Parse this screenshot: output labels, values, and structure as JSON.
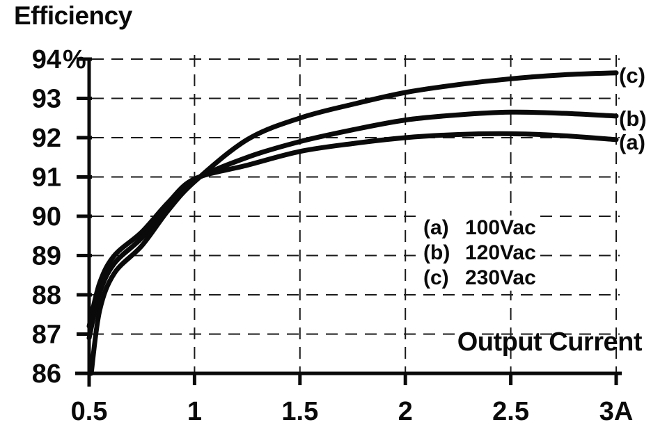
{
  "title": "Efficiency",
  "chart_data": {
    "type": "line",
    "title": "Efficiency",
    "xlabel": "Output Current",
    "ylabel": "Efficiency (%)",
    "xlim": [
      0.5,
      3.0
    ],
    "ylim": [
      86,
      94
    ],
    "grid": "dashed",
    "legend_position": "inside-middle-right",
    "x_ticks": [
      {
        "v": 0.5,
        "label": "0.5"
      },
      {
        "v": 1,
        "label": "1"
      },
      {
        "v": 1.5,
        "label": "1.5"
      },
      {
        "v": 2,
        "label": "2"
      },
      {
        "v": 2.5,
        "label": "2.5"
      },
      {
        "v": 3,
        "label": "3A"
      }
    ],
    "y_ticks": [
      {
        "v": 94,
        "label": "94",
        "suffix": "%"
      },
      {
        "v": 93,
        "label": "93",
        "suffix": ""
      },
      {
        "v": 92,
        "label": "92",
        "suffix": ""
      },
      {
        "v": 91,
        "label": "91",
        "suffix": ""
      },
      {
        "v": 90,
        "label": "90",
        "suffix": ""
      },
      {
        "v": 89,
        "label": "89",
        "suffix": ""
      },
      {
        "v": 88,
        "label": "88",
        "suffix": ""
      },
      {
        "v": 87,
        "label": "87",
        "suffix": ""
      },
      {
        "v": 86,
        "label": "86",
        "suffix": ""
      }
    ],
    "series": [
      {
        "id": "a",
        "marker": "(a)",
        "name": "100Vac",
        "end_label": "(a)",
        "x": [
          0.5,
          0.55,
          0.62,
          0.75,
          0.875,
          1.0,
          1.25,
          1.5,
          1.75,
          2.0,
          2.25,
          2.5,
          2.75,
          3.0
        ],
        "y": [
          87.2,
          88.3,
          89.0,
          89.6,
          90.35,
          90.95,
          91.3,
          91.65,
          91.85,
          92.0,
          92.08,
          92.1,
          92.05,
          91.95
        ]
      },
      {
        "id": "b",
        "marker": "(b)",
        "name": "120Vac",
        "end_label": "(b)",
        "x": [
          0.5,
          0.55,
          0.62,
          0.75,
          0.875,
          1.0,
          1.25,
          1.5,
          1.75,
          2.0,
          2.25,
          2.5,
          2.75,
          3.0
        ],
        "y": [
          86.9,
          88.05,
          88.8,
          89.45,
          90.25,
          90.92,
          91.5,
          91.9,
          92.2,
          92.45,
          92.58,
          92.65,
          92.62,
          92.55
        ]
      },
      {
        "id": "c",
        "marker": "(c)",
        "name": "230Vac",
        "end_label": "(c)",
        "x": [
          0.51,
          0.55,
          0.62,
          0.75,
          0.875,
          1.0,
          1.25,
          1.5,
          1.75,
          2.0,
          2.25,
          2.5,
          2.75,
          3.0
        ],
        "y": [
          86.0,
          87.6,
          88.55,
          89.25,
          90.15,
          90.88,
          91.95,
          92.5,
          92.85,
          93.15,
          93.35,
          93.5,
          93.6,
          93.65
        ]
      }
    ],
    "colors": {
      "line": "#0a0a0a",
      "grid": "#1a1a1a",
      "text": "#0a0a0a",
      "background": "#ffffff"
    }
  }
}
